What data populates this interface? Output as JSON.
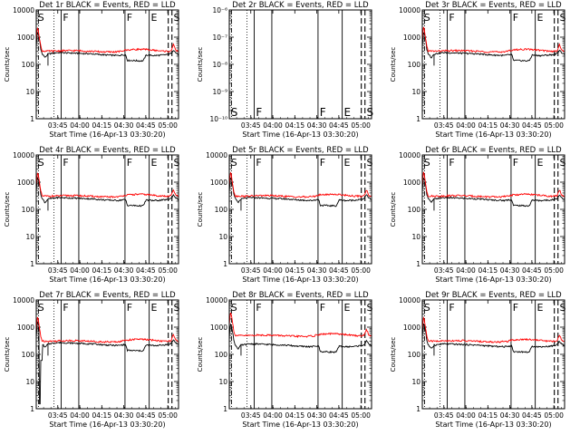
{
  "chart_data": {
    "type": "line",
    "panel_titles": [
      "Det 1r BLACK = Events, RED = LLD",
      "Det 2r BLACK = Events, RED = LLD",
      "Det 3r BLACK = Events, RED = LLD",
      "Det 4r BLACK = Events, RED = LLD",
      "Det 5r BLACK = Events, RED = LLD",
      "Det 6r BLACK = Events, RED = LLD",
      "Det 7r BLACK = Events, RED = LLD",
      "Det 8r BLACK = Events, RED = LLD",
      "Det 9r BLACK = Events, RED = LLD"
    ],
    "xlabel": "Start Time (16-Apr-13 03:30:20)",
    "ylabel": "Counts/sec",
    "x_tick_labels": [
      "03:45",
      "04:00",
      "04:15",
      "04:30",
      "04:45",
      "05:00"
    ],
    "x_tick_minutes": [
      14.67,
      29.67,
      44.67,
      59.67,
      74.67,
      89.67
    ],
    "xlim_minutes": [
      0,
      97
    ],
    "y_scale": "log",
    "ylim": [
      1,
      10000
    ],
    "y_tick_labels": [
      "1",
      "10",
      "100",
      "1000",
      "10000"
    ],
    "det2r_ylim": [
      1e-10,
      1e-06
    ],
    "det2r_y_tick_labels": [
      "10⁻¹⁰",
      "10⁻⁹",
      "10⁻⁸",
      "10⁻⁷",
      "10⁻⁶"
    ],
    "series": [
      {
        "name": "Events",
        "color": "#000000"
      },
      {
        "name": "LLD",
        "color": "#ff0000"
      }
    ],
    "events_profile_minutes": [
      0,
      1,
      2,
      3,
      4,
      6,
      8,
      10,
      14,
      20,
      28,
      30,
      36,
      40,
      44,
      48,
      56,
      59,
      61,
      62,
      66,
      70,
      73,
      75,
      80,
      84,
      87,
      90,
      92,
      93.5,
      95,
      97
    ],
    "events_profile_counts": [
      420,
      1600,
      900,
      360,
      250,
      175,
      240,
      250,
      270,
      265,
      255,
      252,
      245,
      238,
      228,
      220,
      212,
      225,
      225,
      140,
      138,
      135,
      135,
      220,
      210,
      215,
      222,
      232,
      252,
      340,
      270,
      225
    ],
    "lld_profile_minutes": [
      0,
      1,
      2,
      3,
      4,
      8,
      14,
      20,
      28,
      30,
      36,
      44,
      52,
      58,
      60,
      64,
      70,
      75,
      80,
      85,
      90,
      92,
      93.5,
      95,
      97
    ],
    "lld_profile_counts": [
      700,
      2400,
      1000,
      480,
      310,
      305,
      310,
      320,
      320,
      315,
      305,
      290,
      285,
      300,
      330,
      345,
      360,
      350,
      330,
      310,
      300,
      320,
      520,
      330,
      300
    ],
    "event_marks": {
      "dotted_lines_minutes": [
        12
      ],
      "solid_lines_minutes": [
        17,
        29,
        60.5,
        77
      ],
      "dashed_lines_minutes": [
        90,
        92.5
      ],
      "dash_dot_lines_minutes": [
        1.5
      ],
      "markers": [
        {
          "label": "S",
          "minute": 0.5
        },
        {
          "label": "F",
          "minute": 17.5
        },
        {
          "label": "F",
          "minute": 61
        },
        {
          "label": "E",
          "minute": 77.5
        },
        {
          "label": "S",
          "minute": 93
        }
      ]
    }
  }
}
